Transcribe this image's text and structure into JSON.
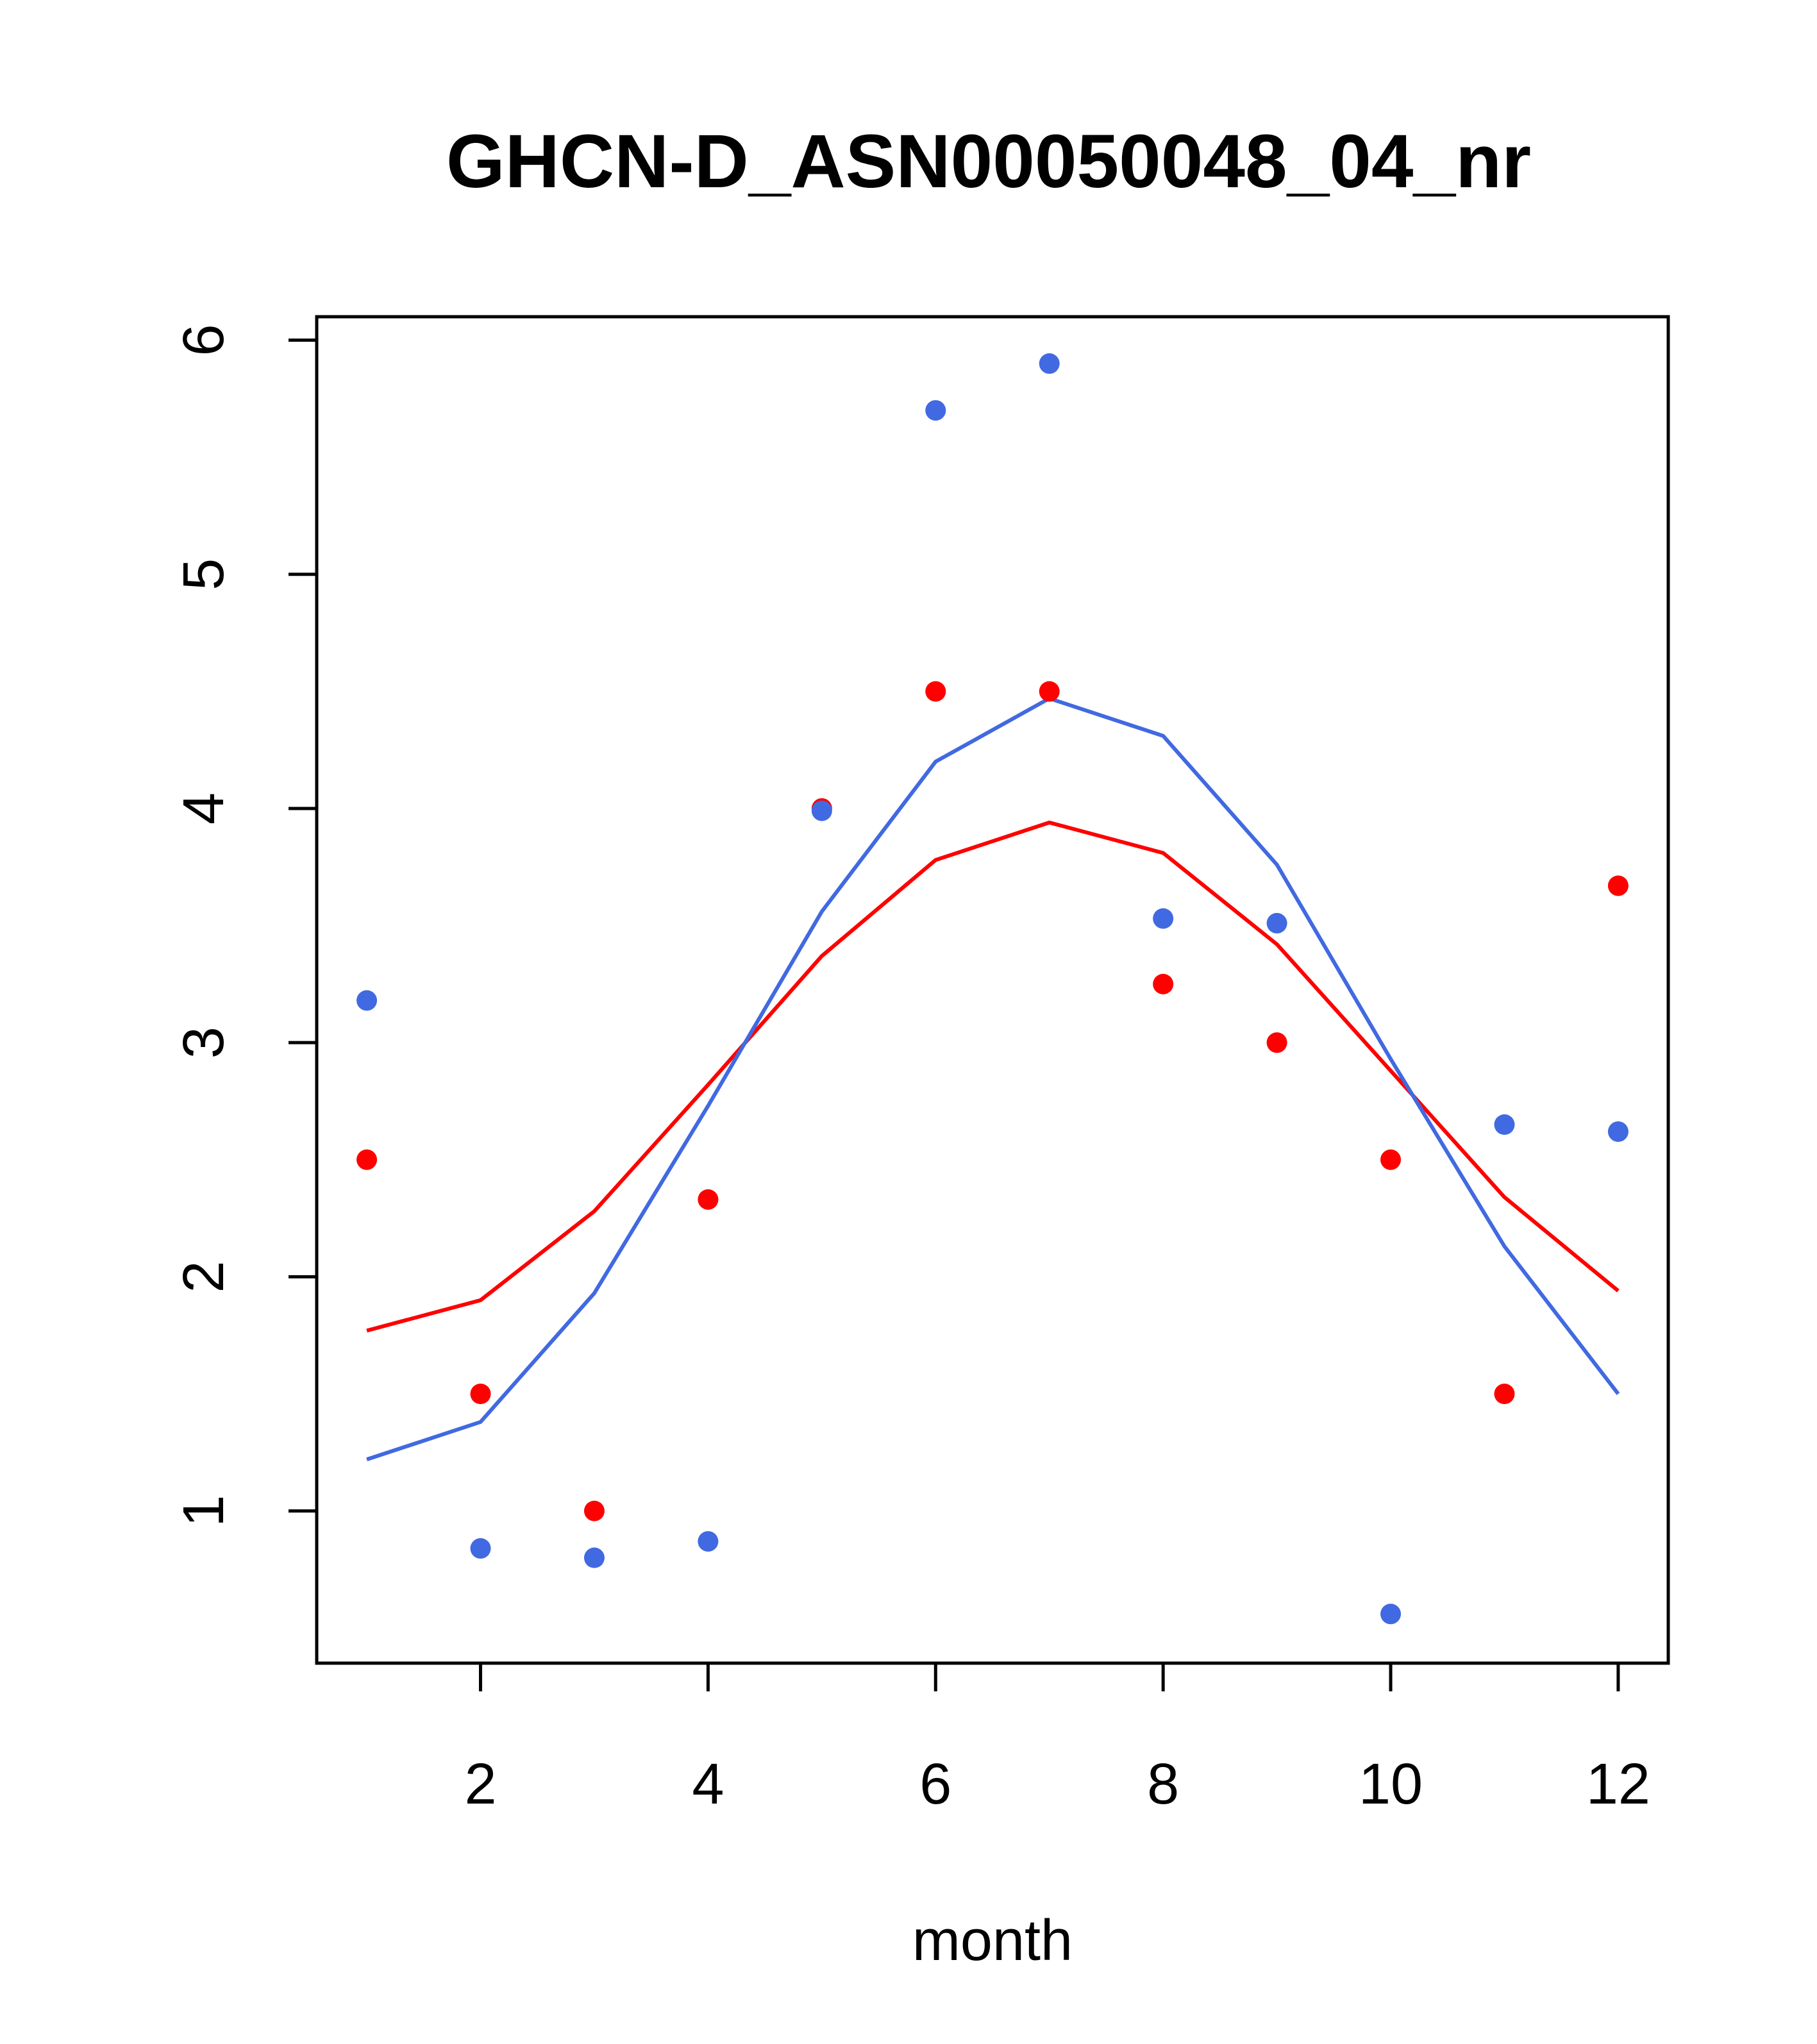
{
  "chart_data": {
    "type": "scatter",
    "title": "GHCN-D_ASN00050048_04_nr",
    "xlabel": "month",
    "ylabel": "",
    "xlim": [
      0.56,
      12.44
    ],
    "ylim": [
      0.35,
      6.1
    ],
    "x_ticks": [
      "2",
      "4",
      "6",
      "8",
      "10",
      "12"
    ],
    "y_ticks": [
      "1",
      "2",
      "3",
      "4",
      "5",
      "6"
    ],
    "grid": false,
    "legend": "none",
    "x": [
      1,
      2,
      3,
      4,
      5,
      6,
      7,
      8,
      9,
      10,
      11,
      12
    ],
    "series": [
      {
        "color": "#ff0000",
        "points": [
          2.5,
          1.5,
          1.0,
          2.33,
          4.0,
          4.5,
          4.5,
          3.25,
          3.0,
          2.5,
          1.5,
          3.67
        ],
        "line": [
          1.77,
          1.9,
          2.28,
          2.82,
          3.37,
          3.78,
          3.94,
          3.81,
          3.42,
          2.88,
          2.34,
          1.94
        ]
      },
      {
        "color": "#4169e1",
        "points": [
          3.18,
          0.84,
          0.8,
          0.87,
          3.99,
          5.7,
          5.9,
          3.53,
          3.51,
          0.56,
          2.65,
          2.62
        ],
        "line": [
          1.22,
          1.38,
          1.93,
          2.73,
          3.56,
          4.2,
          4.47,
          4.31,
          3.76,
          2.93,
          2.13,
          1.5
        ]
      }
    ]
  }
}
